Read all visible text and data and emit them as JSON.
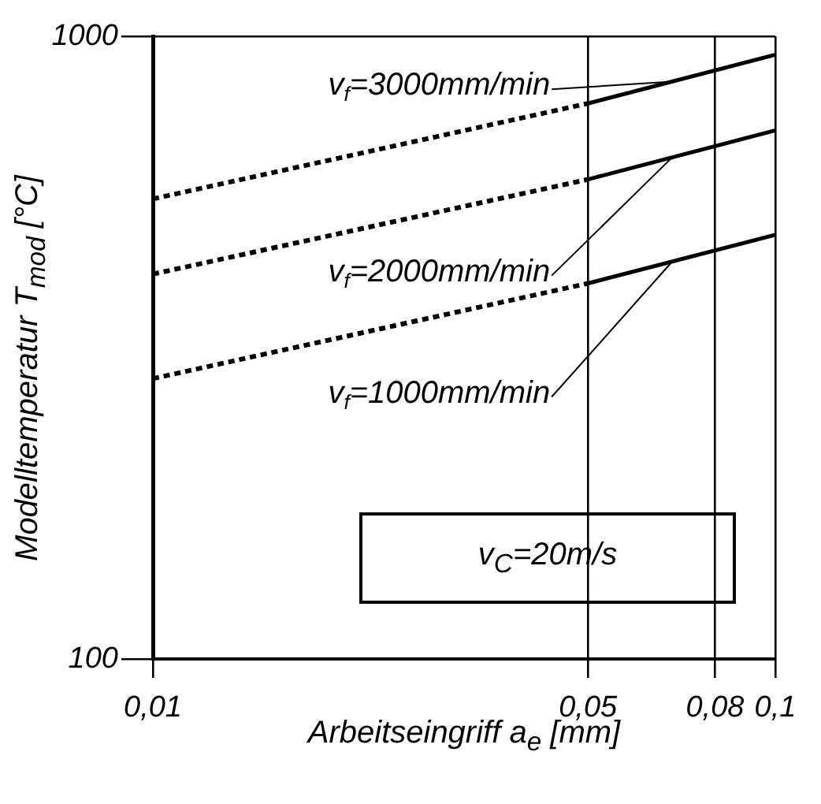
{
  "chart_data": {
    "type": "line",
    "xlabel": "Arbeitseingriff a$_{e}$ [mm]",
    "ylabel": "Modelltemperatur T$_{mod}$ [°C]",
    "log": "xy",
    "grid": true,
    "legend": "top",
    "marker": "none",
    "xlim": [
      0.01,
      0.1
    ],
    "xticks": [
      {
        "value": 0.01,
        "label": "0,01"
      },
      {
        "value": 0.05,
        "label": "0,05"
      },
      {
        "value": 0.08,
        "label": "0,08"
      },
      {
        "value": 0.1,
        "label": "0,1"
      }
    ],
    "ylim": [
      100,
      1000
    ],
    "yticks": [
      100,
      1000
    ],
    "series": [
      {
        "color": "#000000",
        "line_style": "dotted",
        "x": [
          0.01,
          0.05
        ],
        "values": [
          548,
          780
        ]
      },
      {
        "name": "v$_{f}$=3000mm/min",
        "color": "#000000",
        "line_style": "solid",
        "x": [
          0.05,
          0.1
        ],
        "values": [
          780,
          934
        ]
      },
      {
        "color": "#000000",
        "line_style": "dotted",
        "x": [
          0.01,
          0.05
        ],
        "values": [
          415,
          589
        ]
      },
      {
        "name": "v$_{f}$=2000mm/min",
        "color": "#000000",
        "line_style": "solid",
        "x": [
          0.05,
          0.1
        ],
        "values": [
          589,
          706
        ]
      },
      {
        "color": "#000000",
        "line_style": "dotted",
        "x": [
          0.01,
          0.05
        ],
        "values": [
          282,
          401
        ]
      },
      {
        "name": "v$_{f}$=1000mm/min",
        "color": "#000000",
        "line_style": "solid",
        "x": [
          0.05,
          0.1
        ],
        "values": [
          401,
          480
        ]
      }
    ],
    "annotations": [
      "v$_{C}$=20m/s"
    ]
  }
}
